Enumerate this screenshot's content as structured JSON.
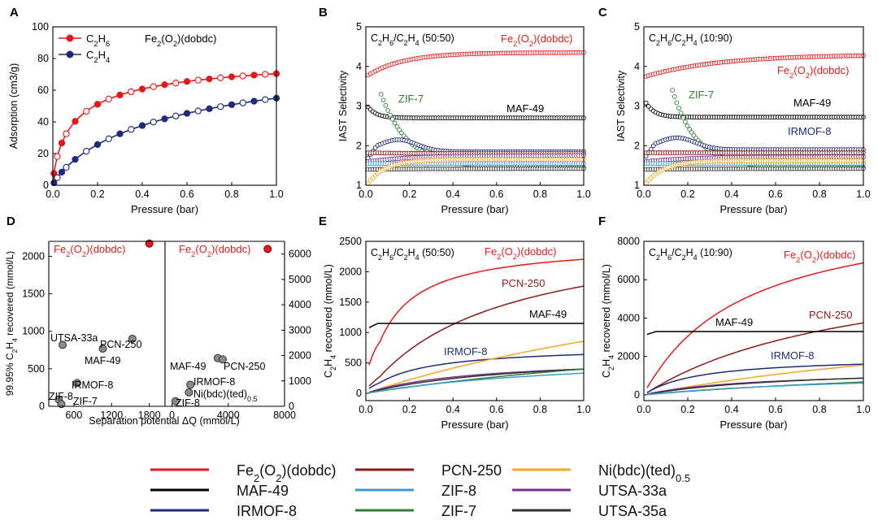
{
  "colors": {
    "fe": "#e31a1c",
    "pcn": "#8b1a1a",
    "ni": "#f5a623",
    "maf": "#000000",
    "zif8": "#3c9bd6",
    "utsa33": "#7b2f8e",
    "irmof": "#1f2a7a",
    "zif7": "#2e7d32",
    "utsa35": "#333333",
    "c2h6": "#e31a1c",
    "c2h4": "#1f2a7a",
    "gray": "#666666"
  },
  "chart_data": [
    {
      "panel": "A",
      "type": "line",
      "title": "Fe2(O2)(dobdc)",
      "xlabel": "Pressure (bar)",
      "ylabel": "Adsorption (cm3/g)",
      "xlim": [
        0,
        1
      ],
      "ylim": [
        0,
        100
      ],
      "xticks": [
        "0.0",
        "0.2",
        "0.4",
        "0.6",
        "0.8",
        "1.0"
      ],
      "yticks": [
        "0",
        "20",
        "40",
        "60",
        "80",
        "100"
      ],
      "series": [
        {
          "name": "C2H6",
          "color_key": "c2h6",
          "q": 84,
          "b": 9.0,
          "n": 0.75,
          "marker": true
        },
        {
          "name": "C2H4",
          "color_key": "c2h4",
          "q": 90,
          "b": 1.7,
          "n": 0.85,
          "marker": true
        }
      ]
    },
    {
      "panel": "B",
      "type": "line",
      "title": "C2H6/C2H4 (50:50)",
      "xlabel": "Pressure (bar)",
      "ylabel": "IAST Selectivity",
      "xlim": [
        0,
        1
      ],
      "ylim": [
        1,
        5
      ],
      "xticks": [
        "0.0",
        "0.2",
        "0.4",
        "0.6",
        "0.8",
        "1.0"
      ],
      "yticks": [
        "1",
        "2",
        "3",
        "4",
        "5"
      ],
      "labels": [
        {
          "text": "Fe2(O2)(dobdc)",
          "color_key": "fe"
        },
        {
          "text": "ZIF-7",
          "color_key": "zif7"
        },
        {
          "text": "MAF-49",
          "color_key": "maf"
        }
      ],
      "series": [
        {
          "name": "Fe2(O2)(dobdc)",
          "color_key": "fe",
          "start": 3.78,
          "end": 4.35,
          "k": 6
        },
        {
          "name": "MAF-49",
          "color_key": "maf",
          "start": 2.98,
          "end": 2.7,
          "k": 25
        },
        {
          "name": "ZIF-7",
          "color_key": "zif7",
          "start": 3.3,
          "end": 1.45,
          "k": 8,
          "x0": 0.07
        },
        {
          "name": "IRMOF-8",
          "color_key": "irmof",
          "start": 1.85,
          "end": 1.85,
          "hump": 0.3
        },
        {
          "name": "PCN-250",
          "color_key": "pcn",
          "start": 1.82,
          "end": 1.8,
          "k": 5
        },
        {
          "name": "UTSA-33a",
          "color_key": "utsa33",
          "start": 1.6,
          "end": 1.75,
          "k": 5
        },
        {
          "name": "ZIF-8",
          "color_key": "zif8",
          "start": 1.55,
          "end": 1.55,
          "k": 5
        },
        {
          "name": "UTSA-35a",
          "color_key": "utsa35",
          "start": 1.4,
          "end": 1.42,
          "k": 5
        },
        {
          "name": "Ni(bdc)(ted)0.5",
          "color_key": "ni",
          "start": 1.05,
          "end": 1.65,
          "k": 12
        }
      ]
    },
    {
      "panel": "C",
      "type": "line",
      "title": "C2H6/C2H4 (10:90)",
      "xlabel": "Pressure (bar)",
      "ylabel": "IAST Selectivity",
      "xlim": [
        0,
        1
      ],
      "ylim": [
        1,
        5
      ],
      "xticks": [
        "0.0",
        "0.2",
        "0.4",
        "0.6",
        "0.8",
        "1.0"
      ],
      "yticks": [
        "1",
        "2",
        "3",
        "4",
        "5"
      ],
      "labels": [
        {
          "text": "Fe2(O2)(dobdc)",
          "color_key": "fe"
        },
        {
          "text": "ZIF-7",
          "color_key": "zif7"
        },
        {
          "text": "MAF-49",
          "color_key": "maf"
        },
        {
          "text": "IRMOF-8",
          "color_key": "irmof"
        }
      ],
      "series": [
        {
          "name": "Fe2(O2)(dobdc)",
          "color_key": "fe",
          "start": 3.75,
          "end": 4.3,
          "k": 3
        },
        {
          "name": "MAF-49",
          "color_key": "maf",
          "start": 3.08,
          "end": 2.72,
          "k": 25
        },
        {
          "name": "ZIF-7",
          "color_key": "zif7",
          "start": 3.4,
          "end": 1.45,
          "k": 9,
          "x0": 0.13
        },
        {
          "name": "IRMOF-8",
          "color_key": "irmof",
          "start": 1.9,
          "end": 1.9,
          "hump": 0.3
        },
        {
          "name": "PCN-250",
          "color_key": "pcn",
          "start": 1.82,
          "end": 1.82,
          "k": 5
        },
        {
          "name": "UTSA-33a",
          "color_key": "utsa33",
          "start": 1.6,
          "end": 1.72,
          "k": 5
        },
        {
          "name": "ZIF-8",
          "color_key": "zif8",
          "start": 1.55,
          "end": 1.55,
          "k": 5
        },
        {
          "name": "UTSA-35a",
          "color_key": "utsa35",
          "start": 1.4,
          "end": 1.42,
          "k": 5
        },
        {
          "name": "Ni(bdc)(ted)0.5",
          "color_key": "ni",
          "start": 1.05,
          "end": 1.62,
          "k": 12
        }
      ]
    },
    {
      "panel": "D",
      "type": "scatter",
      "xlabel": "Separation potential ΔQ (mmol/L)",
      "ylabel": "99.95% C2H4 recovered (mmol/L)",
      "left": {
        "xlim": [
          200,
          2050
        ],
        "ylim": [
          0,
          2200
        ],
        "xticks": [
          "600",
          "1200",
          "1800"
        ],
        "yticks": [
          "0",
          "500",
          "1000",
          "1500",
          "2000"
        ],
        "title": "Fe2(O2)(dobdc)",
        "points": [
          {
            "name": "Fe2(O2)(dobdc)",
            "x": 1800,
            "y": 2170,
            "highlight": true
          },
          {
            "name": "UTSA-33a",
            "x": 420,
            "y": 820
          },
          {
            "name": "PCN-250",
            "x": 1530,
            "y": 900
          },
          {
            "name": "MAF-49",
            "x": 1060,
            "y": 770
          },
          {
            "name": "IRMOF-8",
            "x": 650,
            "y": 310
          },
          {
            "name": "ZIF-8",
            "x": 360,
            "y": 90
          },
          {
            "name": "ZIF-7",
            "x": 400,
            "y": 30
          }
        ],
        "labels": [
          "Fe2(O2)(dobdc)",
          "UTSA-33a",
          "PCN-250",
          "MAF-49",
          "IRMOF-8",
          "ZIF-8",
          "ZIF-7"
        ]
      },
      "right": {
        "xlim": [
          -500,
          8000
        ],
        "ylim": [
          0,
          6500
        ],
        "xticks": [
          "0",
          "4000",
          "8000"
        ],
        "yticks": [
          "0",
          "1000",
          "2000",
          "3000",
          "4000",
          "5000",
          "6000"
        ],
        "title": "Fe2(O2)(dobdc)",
        "points": [
          {
            "name": "Fe2(O2)(dobdc)",
            "x": 6800,
            "y": 6200,
            "highlight": true
          },
          {
            "name": "MAF-49",
            "x": 3250,
            "y": 1900
          },
          {
            "name": "PCN-250",
            "x": 3600,
            "y": 1850
          },
          {
            "name": "IRMOF-8",
            "x": 1300,
            "y": 850
          },
          {
            "name": "Ni(bdc)(ted)0.5",
            "x": 1200,
            "y": 550
          },
          {
            "name": "ZIF-8",
            "x": 250,
            "y": 200
          }
        ],
        "labels": [
          "Fe2(O2)(dobdc)",
          "MAF-49",
          "PCN-250",
          "IRMOF-8",
          "Ni(bdc)(ted)0.5",
          "ZIF-8"
        ]
      }
    },
    {
      "panel": "E",
      "type": "line",
      "title": "C2H6/C2H4 (50:50)",
      "xlabel": "Pressure (bar)",
      "ylabel": "C2H4 recovered (mmol/L)",
      "xlim": [
        0,
        1
      ],
      "ylim": [
        -120,
        2500
      ],
      "xticks": [
        "0.0",
        "0.2",
        "0.4",
        "0.6",
        "0.8",
        "1.0"
      ],
      "yticks": [
        "0",
        "500",
        "1000",
        "1500",
        "2000",
        "2500"
      ],
      "labels": [
        {
          "text": "Fe2(O2)(dobdc)",
          "color_key": "fe"
        },
        {
          "text": "PCN-250",
          "color_key": "pcn"
        },
        {
          "text": "MAF-49",
          "color_key": "maf"
        },
        {
          "text": "IRMOF-8",
          "color_key": "irmof"
        }
      ],
      "series": [
        {
          "name": "Fe2(O2)(dobdc)",
          "color_key": "fe",
          "Ymax": 2480,
          "b": 8,
          "x0": 0.015,
          "y0": 200
        },
        {
          "name": "PCN-250",
          "color_key": "pcn",
          "Ymax": 2800,
          "b": 1.7,
          "x0": 0.015,
          "y0": 50
        },
        {
          "name": "MAF-49",
          "color_key": "maf",
          "flat": 1150,
          "x0": 0.015,
          "y0": 1080
        },
        {
          "name": "IRMOF-8",
          "color_key": "irmof",
          "Ymax": 780,
          "b": 4.5,
          "x0": 0.015,
          "y0": 30
        },
        {
          "name": "Ni(bdc)(ted)0.5",
          "color_key": "ni",
          "Ymax": 3000,
          "b": 0.4,
          "x0": 0.015,
          "y0": 0
        },
        {
          "name": "UTSA-33a",
          "color_key": "utsa33",
          "Ymax": 600,
          "b": 2.0,
          "x0": 0.015,
          "y0": 0
        },
        {
          "name": "UTSA-35a",
          "color_key": "utsa35",
          "Ymax": 680,
          "b": 1.4,
          "x0": 0.015,
          "y0": 0
        },
        {
          "name": "ZIF-7",
          "color_key": "zif7",
          "Ymax": 1400,
          "b": 0.4,
          "x0": 0.015,
          "y0": 0
        },
        {
          "name": "ZIF-8",
          "color_key": "zif8",
          "Ymax": 700,
          "b": 0.9,
          "x0": 0.015,
          "y0": 0
        }
      ]
    },
    {
      "panel": "F",
      "type": "line",
      "title": "C2H6/C2H4 (10:90)",
      "xlabel": "Pressure (bar)",
      "ylabel": "C2H4 recovered (mmol/L)",
      "xlim": [
        0,
        1
      ],
      "ylim": [
        -300,
        8000
      ],
      "xticks": [
        "0.0",
        "0.2",
        "0.4",
        "0.6",
        "0.8",
        "1.0"
      ],
      "yticks": [
        "0",
        "2000",
        "4000",
        "6000",
        "8000"
      ],
      "labels": [
        {
          "text": "Fe2(O2)(dobdc)",
          "color_key": "fe"
        },
        {
          "text": "PCN-250",
          "color_key": "pcn"
        },
        {
          "text": "MAF-49",
          "color_key": "maf"
        },
        {
          "text": "IRMOF-8",
          "color_key": "irmof"
        }
      ],
      "series": [
        {
          "name": "Fe2(O2)(dobdc)",
          "color_key": "fe",
          "Ymax": 10000,
          "b": 2.2,
          "x0": 0.015,
          "y0": 50
        },
        {
          "name": "PCN-250",
          "color_key": "pcn",
          "Ymax": 7500,
          "b": 1.0,
          "x0": 0.015,
          "y0": 0
        },
        {
          "name": "MAF-49",
          "color_key": "maf",
          "flat": 3300,
          "x0": 0.015,
          "y0": 3150
        },
        {
          "name": "IRMOF-8",
          "color_key": "irmof",
          "Ymax": 2000,
          "b": 4.0,
          "x0": 0.015,
          "y0": 0
        },
        {
          "name": "Ni(bdc)(ted)0.5",
          "color_key": "ni",
          "Ymax": 5000,
          "b": 0.45,
          "x0": 0.015,
          "y0": 0
        },
        {
          "name": "UTSA-33a",
          "color_key": "utsa33",
          "Ymax": 1300,
          "b": 2.0,
          "x0": 0.015,
          "y0": 0
        },
        {
          "name": "UTSA-35a",
          "color_key": "utsa35",
          "Ymax": 1500,
          "b": 1.4,
          "x0": 0.015,
          "y0": 0
        },
        {
          "name": "ZIF-7",
          "color_key": "zif7",
          "Ymax": 2000,
          "b": 0.5,
          "x0": 0.015,
          "y0": 0
        },
        {
          "name": "ZIF-8",
          "color_key": "zif8",
          "Ymax": 1300,
          "b": 0.9,
          "x0": 0.015,
          "y0": 0
        }
      ]
    }
  ],
  "legend": [
    {
      "name": "Fe2(O2)(dobdc)",
      "color_key": "fe"
    },
    {
      "name": "PCN-250",
      "color_key": "pcn"
    },
    {
      "name": "Ni(bdc)(ted)0.5",
      "color_key": "ni"
    },
    {
      "name": "MAF-49",
      "color_key": "maf"
    },
    {
      "name": "ZIF-8",
      "color_key": "zif8"
    },
    {
      "name": "UTSA-33a",
      "color_key": "utsa33"
    },
    {
      "name": "IRMOF-8",
      "color_key": "irmof"
    },
    {
      "name": "ZIF-7",
      "color_key": "zif7"
    },
    {
      "name": "UTSA-35a",
      "color_key": "utsa35"
    }
  ],
  "panel_letters": [
    "A",
    "B",
    "C",
    "D",
    "E",
    "F"
  ]
}
